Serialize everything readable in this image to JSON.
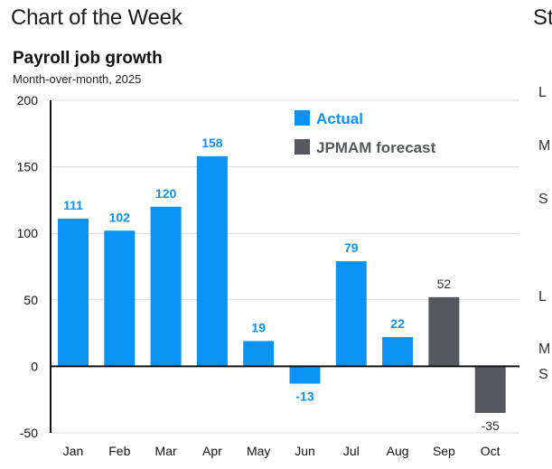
{
  "header": {
    "title": "Chart of the Week",
    "next_panel_title_fragment": "St"
  },
  "side_panel_letters": [
    "L",
    "M",
    "S",
    "L",
    "M",
    "S"
  ],
  "chart_data": {
    "type": "bar",
    "title": "Payroll job growth",
    "subtitle": "Month-over-month, 2025",
    "xlabel": "",
    "ylabel": "",
    "ylim": [
      -50,
      200
    ],
    "yticks": [
      200,
      150,
      100,
      50,
      0,
      -50
    ],
    "ytick_labels": [
      "200",
      "150",
      "100",
      "50",
      "0",
      "-50"
    ],
    "categories": [
      "Jan",
      "Feb",
      "Mar",
      "Apr",
      "May",
      "Jun",
      "Jul",
      "Aug",
      "Sep",
      "Oct"
    ],
    "values": [
      111,
      102,
      120,
      158,
      19,
      -13,
      79,
      22,
      52,
      -35
    ],
    "value_labels": [
      "111",
      "102",
      "120",
      "158",
      "19",
      "-13",
      "79",
      "22",
      "52",
      "-35"
    ],
    "series_of_bar": [
      "Actual",
      "Actual",
      "Actual",
      "Actual",
      "Actual",
      "Actual",
      "Actual",
      "Actual",
      "JPMAM forecast",
      "JPMAM forecast"
    ],
    "legend": [
      {
        "name": "Actual",
        "color": "#0a93f5"
      },
      {
        "name": "JPMAM forecast",
        "color": "#55585c"
      }
    ],
    "legend_position": "top-right",
    "grid": true,
    "colors": {
      "actual": "#0a93f5",
      "forecast": "#55585c",
      "actual_label": "#0a93f5",
      "forecast_label": "#333333",
      "grid": "#d9d9d9",
      "axis": "#111111"
    }
  }
}
